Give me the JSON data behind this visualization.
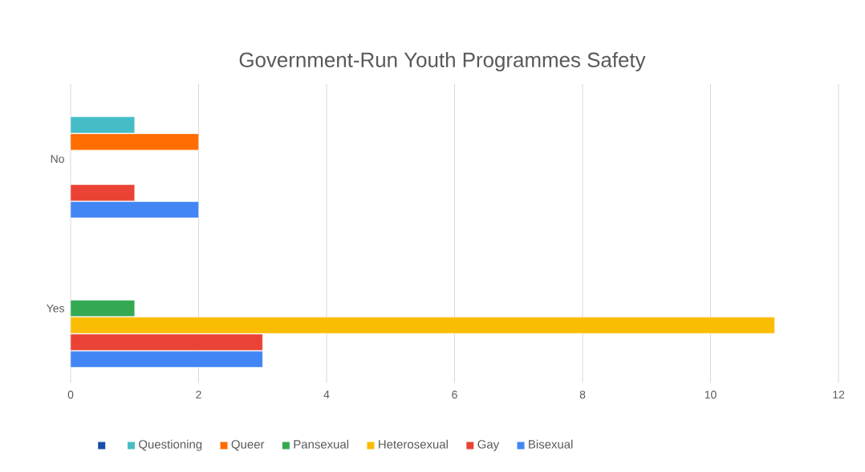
{
  "chart_data": {
    "type": "bar",
    "orientation": "horizontal",
    "title": "Government-Run Youth Programmes Safety",
    "categories": [
      "No",
      "Yes"
    ],
    "series": [
      {
        "color": "#174ea6",
        "values": [
          null,
          null
        ]
      },
      {
        "name": "Questioning",
        "color": "#46bdc6",
        "values": [
          1,
          null
        ]
      },
      {
        "name": "Queer",
        "color": "#ff6d01",
        "values": [
          2,
          null
        ]
      },
      {
        "name": "Pansexual",
        "color": "#34a853",
        "values": [
          null,
          1
        ]
      },
      {
        "name": "Heterosexual",
        "color": "#fbbc04",
        "values": [
          null,
          11
        ]
      },
      {
        "name": "Gay",
        "color": "#ea4335",
        "values": [
          1,
          3
        ]
      },
      {
        "name": "Bisexual",
        "color": "#4285f4",
        "values": [
          2,
          3
        ]
      }
    ],
    "xlim": [
      0,
      12
    ],
    "xticks": [
      0,
      2,
      4,
      6,
      8,
      10,
      12
    ],
    "grid": "x",
    "legend": "bottom"
  }
}
